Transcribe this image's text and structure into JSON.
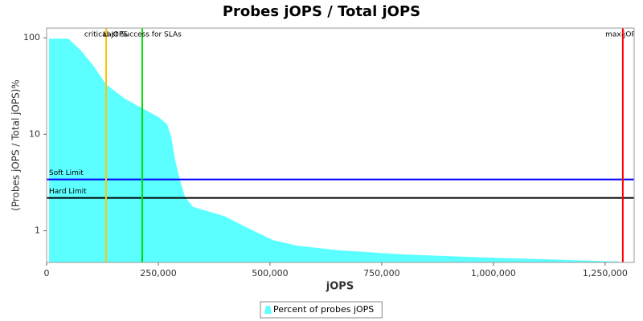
{
  "chart_data": {
    "type": "area",
    "title": "Probes jOPS / Total jOPS",
    "x_label": "jOPS",
    "y_label": "(Probes jOPS / Total jOPS)%",
    "x": [
      5400,
      48600,
      75500,
      102500,
      133100,
      174500,
      214000,
      250000,
      269800,
      278800,
      287800,
      298600,
      309400,
      327300,
      363300,
      399300,
      435300,
      471200,
      507200,
      561200,
      651100,
      795000,
      974800,
      1154700,
      1280600
    ],
    "series": [
      {
        "name": "Percent of probes jOPS",
        "color": "#5cffff",
        "values": [
          98,
          98,
          75,
          53,
          33,
          23.4,
          18.6,
          15.1,
          12.7,
          9.5,
          5.4,
          3.33,
          2.27,
          1.77,
          1.58,
          1.41,
          1.16,
          0.96,
          0.8,
          0.7,
          0.63,
          0.57,
          0.53,
          0.5,
          0.48
        ]
      }
    ],
    "xlim": [
      0,
      1315000
    ],
    "ylim": [
      0.47,
      126
    ],
    "ylog": true,
    "xticks": [
      0,
      {
        "value": 250000,
        "label": "250,000"
      },
      {
        "value": 500000,
        "label": "500,000"
      },
      {
        "value": 750000,
        "label": "750,000"
      },
      {
        "value": 1000000,
        "label": "1,000,000"
      },
      {
        "value": 1250000,
        "label": "1,250,000"
      }
    ],
    "yticks": [
      1,
      10,
      100
    ],
    "legend": "bottom",
    "vertical_markers": [
      {
        "label": "critical-jOPS",
        "x": 133100,
        "color": "#ffc800"
      },
      {
        "label": "Last Success for SLAs",
        "x": 214000,
        "color": "#00dd00"
      },
      {
        "label": "max-jOPS",
        "x": 1289600,
        "color": "#ff0000"
      }
    ],
    "horizontal_markers": [
      {
        "label": "Soft Limit",
        "y": 3.4,
        "color": "#0000ff"
      },
      {
        "label": "Hard Limit",
        "y": 2.19,
        "color": "#000000"
      }
    ]
  }
}
